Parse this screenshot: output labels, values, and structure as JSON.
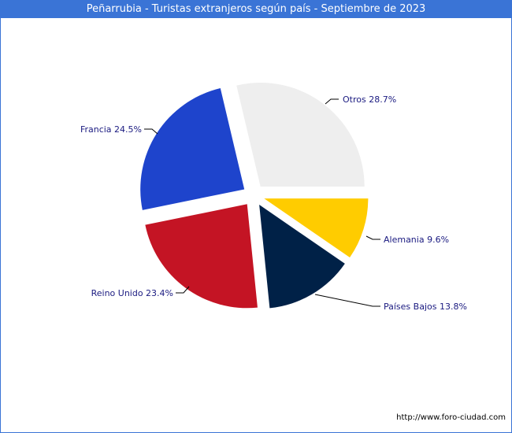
{
  "title": "Peñarrubia - Turistas extranjeros según país - Septiembre de 2023",
  "footer": "http://www.foro-ciudad.com",
  "chart_data": {
    "type": "pie",
    "title": "Peñarrubia - Turistas extranjeros según país - Septiembre de 2023",
    "slices": [
      {
        "label": "Otros",
        "value": 28.7,
        "text": "Otros 28.7%",
        "color": "#eeeeee"
      },
      {
        "label": "Francia",
        "value": 24.5,
        "text": "Francia 24.5%",
        "color": "#1e44cc"
      },
      {
        "label": "Reino Unido",
        "value": 23.4,
        "text": "Reino Unido 23.4%",
        "color": "#c41424"
      },
      {
        "label": "Países Bajos",
        "value": 13.8,
        "text": "Países Bajos 13.8%",
        "color": "#002147"
      },
      {
        "label": "Alemania",
        "value": 9.6,
        "text": "Alemania 9.6%",
        "color": "#ffcc00"
      }
    ]
  }
}
